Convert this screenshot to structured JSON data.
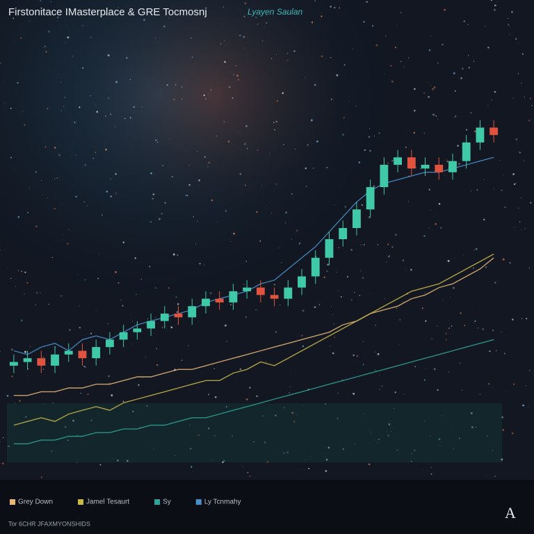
{
  "chart_data": {
    "type": "candlestick",
    "title": "Firstonitace IMasterplace & GRE Tocmosnj",
    "subtitle": "Lyayen Saulan",
    "footer": "Tor 6CHR JFAXMYONSHIDS",
    "categories": [
      null,
      null,
      null,
      null,
      null,
      null,
      null,
      null,
      null,
      null,
      null,
      null,
      null,
      null,
      null,
      null,
      null,
      null,
      null,
      null,
      null,
      null,
      null,
      null,
      null,
      null,
      null,
      null,
      null,
      null,
      null,
      null,
      null,
      null,
      null,
      null
    ],
    "open": [
      26,
      27,
      28,
      26,
      29,
      30,
      28,
      31,
      33,
      35,
      36,
      38,
      40,
      39,
      42,
      44,
      43,
      46,
      47,
      45,
      44,
      47,
      50,
      55,
      60,
      63,
      68,
      74,
      80,
      82,
      79,
      80,
      78,
      81,
      86,
      90
    ],
    "high": [
      29,
      30,
      30,
      31,
      32,
      32,
      33,
      35,
      37,
      38,
      40,
      42,
      42,
      44,
      46,
      46,
      48,
      49,
      49,
      47,
      49,
      52,
      57,
      62,
      65,
      70,
      76,
      82,
      84,
      84,
      82,
      82,
      83,
      88,
      92,
      92
    ],
    "low": [
      24,
      25,
      24,
      24,
      27,
      26,
      26,
      29,
      31,
      33,
      34,
      36,
      37,
      37,
      40,
      41,
      41,
      44,
      43,
      42,
      42,
      45,
      48,
      53,
      58,
      61,
      66,
      72,
      78,
      77,
      77,
      76,
      76,
      79,
      84,
      86
    ],
    "close": [
      27,
      28,
      26,
      29,
      30,
      28,
      31,
      33,
      35,
      36,
      38,
      40,
      39,
      42,
      44,
      43,
      46,
      47,
      45,
      44,
      47,
      50,
      55,
      60,
      63,
      68,
      74,
      80,
      82,
      79,
      80,
      78,
      81,
      86,
      90,
      88
    ],
    "up_color": "#3fc9a8",
    "down_color": "#e0533f",
    "series": [
      {
        "name": "Grey Down",
        "color": "#e8b878",
        "values": [
          18,
          18,
          19,
          19,
          20,
          20,
          21,
          21,
          22,
          23,
          23,
          24,
          25,
          25,
          26,
          27,
          28,
          29,
          30,
          31,
          32,
          33,
          34,
          35,
          37,
          38,
          40,
          41,
          42,
          44,
          45,
          47,
          48,
          50,
          52,
          55
        ]
      },
      {
        "name": "Jamel Tesaurt",
        "color": "#c9b84a",
        "values": [
          10,
          11,
          12,
          11,
          13,
          14,
          15,
          14,
          16,
          17,
          18,
          19,
          20,
          21,
          22,
          22,
          24,
          25,
          27,
          26,
          28,
          30,
          32,
          34,
          36,
          38,
          40,
          42,
          44,
          46,
          47,
          48,
          50,
          52,
          54,
          56
        ]
      },
      {
        "name": "Sy",
        "color": "#2fa59a",
        "values": [
          5,
          5,
          6,
          6,
          7,
          7,
          8,
          8,
          9,
          9,
          10,
          10,
          11,
          12,
          12,
          13,
          14,
          15,
          16,
          17,
          18,
          19,
          20,
          21,
          22,
          23,
          24,
          25,
          26,
          27,
          28,
          29,
          30,
          31,
          32,
          33
        ]
      },
      {
        "name": "Ly Tcnmahy",
        "color": "#4a8fc9",
        "values": [
          30,
          29,
          31,
          32,
          30,
          33,
          34,
          33,
          35,
          37,
          38,
          39,
          40,
          41,
          43,
          44,
          45,
          46,
          48,
          49,
          52,
          55,
          58,
          62,
          66,
          70,
          73,
          75,
          76,
          77,
          78,
          78,
          79,
          80,
          81,
          82
        ]
      }
    ],
    "ylim": [
      0,
      100
    ]
  }
}
